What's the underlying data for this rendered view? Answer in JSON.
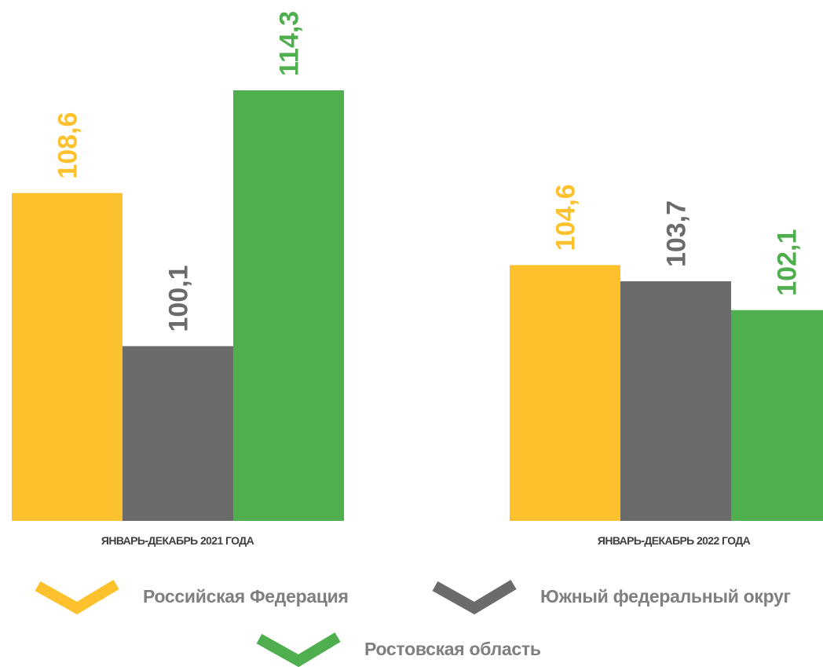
{
  "chart_data": {
    "type": "bar",
    "categories": [
      "ЯНВАРЬ-ДЕКАБРЬ 2021 ГОДА",
      "ЯНВАРЬ-ДЕКАБРЬ 2022 ГОДА"
    ],
    "series": [
      {
        "name": "Российская Федерация",
        "color": "#fdc12d",
        "values": [
          108.6,
          104.6
        ],
        "labels": [
          "108,6",
          "104,6"
        ]
      },
      {
        "name": "Южный федеральный округ",
        "color": "#6b6b6b",
        "values": [
          100.1,
          103.7
        ],
        "labels": [
          "100,1",
          "103,7"
        ]
      },
      {
        "name": "Ростовская область",
        "color": "#4fae4e",
        "values": [
          114.3,
          102.1
        ],
        "labels": [
          "114,3",
          "102,1"
        ]
      }
    ],
    "ylim": [
      90.4,
      114.3
    ],
    "grid": false,
    "legend_position": "bottom",
    "title": "",
    "xlabel": "",
    "ylabel": ""
  },
  "legend": {
    "items": [
      {
        "label": "Российская Федерация",
        "color": "#fdc12d",
        "icon": "chevron-icon"
      },
      {
        "label": "Южный федеральный округ",
        "color": "#6b6b6b",
        "icon": "chevron-icon"
      },
      {
        "label": "Ростовская область",
        "color": "#4fae4e",
        "icon": "chevron-icon"
      }
    ]
  }
}
